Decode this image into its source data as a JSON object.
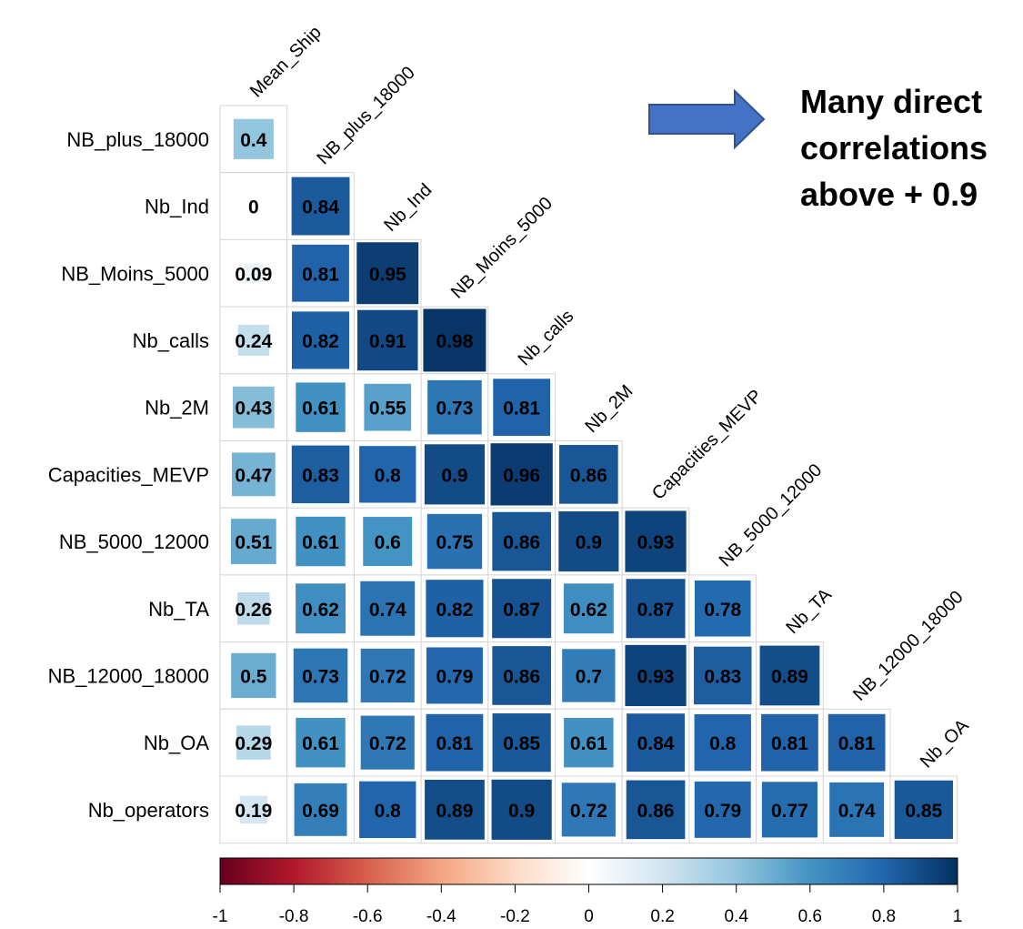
{
  "chart_data": {
    "type": "heatmap",
    "variables": [
      "Mean_Ship",
      "NB_plus_18000",
      "Nb_Ind",
      "NB_Moins_5000",
      "Nb_calls",
      "Nb_2M",
      "Capacities_MEVP",
      "NB_5000_12000",
      "Nb_TA",
      "NB_12000_18000",
      "Nb_OA",
      "Nb_operators"
    ],
    "row_labels": [
      "NB_plus_18000",
      "Nb_Ind",
      "NB_Moins_5000",
      "Nb_calls",
      "Nb_2M",
      "Capacities_MEVP",
      "NB_5000_12000",
      "Nb_TA",
      "NB_12000_18000",
      "Nb_OA",
      "Nb_operators"
    ],
    "column_labels": [
      "Mean_Ship",
      "NB_plus_18000",
      "Nb_Ind",
      "NB_Moins_5000",
      "Nb_calls",
      "Nb_2M",
      "Capacities_MEVP",
      "NB_5000_12000",
      "Nb_TA",
      "NB_12000_18000",
      "Nb_OA"
    ],
    "values": [
      [
        0.4
      ],
      [
        0,
        0.84
      ],
      [
        0.09,
        0.81,
        0.95
      ],
      [
        0.24,
        0.82,
        0.91,
        0.98
      ],
      [
        0.43,
        0.61,
        0.55,
        0.73,
        0.81
      ],
      [
        0.47,
        0.83,
        0.8,
        0.9,
        0.96,
        0.86
      ],
      [
        0.51,
        0.61,
        0.6,
        0.75,
        0.86,
        0.9,
        0.93
      ],
      [
        0.26,
        0.62,
        0.74,
        0.82,
        0.87,
        0.62,
        0.87,
        0.78
      ],
      [
        0.5,
        0.73,
        0.72,
        0.79,
        0.86,
        0.7,
        0.93,
        0.83,
        0.89
      ],
      [
        0.29,
        0.61,
        0.72,
        0.81,
        0.85,
        0.61,
        0.84,
        0.8,
        0.81,
        0.81
      ],
      [
        0.19,
        0.69,
        0.8,
        0.89,
        0.9,
        0.72,
        0.86,
        0.79,
        0.77,
        0.74,
        0.85
      ]
    ],
    "labels": [
      [
        "0.4"
      ],
      [
        "0",
        "0.84"
      ],
      [
        "0.09",
        "0.81",
        "0.95"
      ],
      [
        "0.24",
        "0.82",
        "0.91",
        "0.98"
      ],
      [
        "0.43",
        "0.61",
        "0.55",
        "0.73",
        "0.81"
      ],
      [
        "0.47",
        "0.83",
        "0.8",
        "0.9",
        "0.96",
        "0.86"
      ],
      [
        "0.51",
        "0.61",
        "0.6",
        "0.75",
        "0.86",
        "0.9",
        "0.93"
      ],
      [
        "0.26",
        "0.62",
        "0.74",
        "0.82",
        "0.87",
        "0.62",
        "0.87",
        "0.78"
      ],
      [
        "0.5",
        "0.73",
        "0.72",
        "0.79",
        "0.86",
        "0.7",
        "0.93",
        "0.83",
        "0.89"
      ],
      [
        "0.29",
        "0.61",
        "0.72",
        "0.81",
        "0.85",
        "0.61",
        "0.84",
        "0.8",
        "0.81",
        "0.81"
      ],
      [
        "0.19",
        "0.69",
        "0.8",
        "0.89",
        "0.9",
        "0.72",
        "0.86",
        "0.79",
        "0.77",
        "0.74",
        "0.85"
      ]
    ],
    "colorbar": {
      "range": [
        -1,
        1
      ],
      "ticks": [
        "-1",
        "-0.8",
        "-0.6",
        "-0.4",
        "-0.2",
        "0",
        "0.2",
        "0.4",
        "0.6",
        "0.8",
        "1"
      ],
      "colors": [
        "#67001f",
        "#b2182b",
        "#d6604d",
        "#f4a582",
        "#fddbc7",
        "#ffffff",
        "#d1e5f0",
        "#92c5de",
        "#4393c3",
        "#2166ac",
        "#053061"
      ]
    },
    "layout": "lower-triangle",
    "cell_size_scales_with_abs_value": true
  },
  "annotation": {
    "text": "Many direct\ncorrelations\nabove + 0.9",
    "arrow_color": "#4472c4",
    "arrow_border": "#2f528f"
  }
}
